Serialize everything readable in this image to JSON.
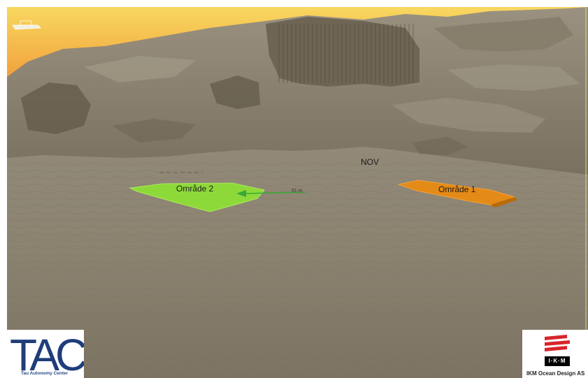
{
  "scene": {
    "label_nov": "NOV",
    "area_2_label": "Område 2",
    "area_1_label": "Område 1",
    "distance_label": "51 m",
    "colors": {
      "area_2": "#8ed93a",
      "area_1": "#e48a16",
      "sky_top": "#f8d25a",
      "sky_bottom": "#f08a2c",
      "seabed": "#8a8170",
      "arrow": "#3aa835"
    }
  },
  "logos": {
    "tac_mark": "TAC",
    "tac_subtitle": "Tau Autonomy Center",
    "ikm_mark": "I·K·M",
    "ikm_name": "IKM Ocean Design AS"
  }
}
